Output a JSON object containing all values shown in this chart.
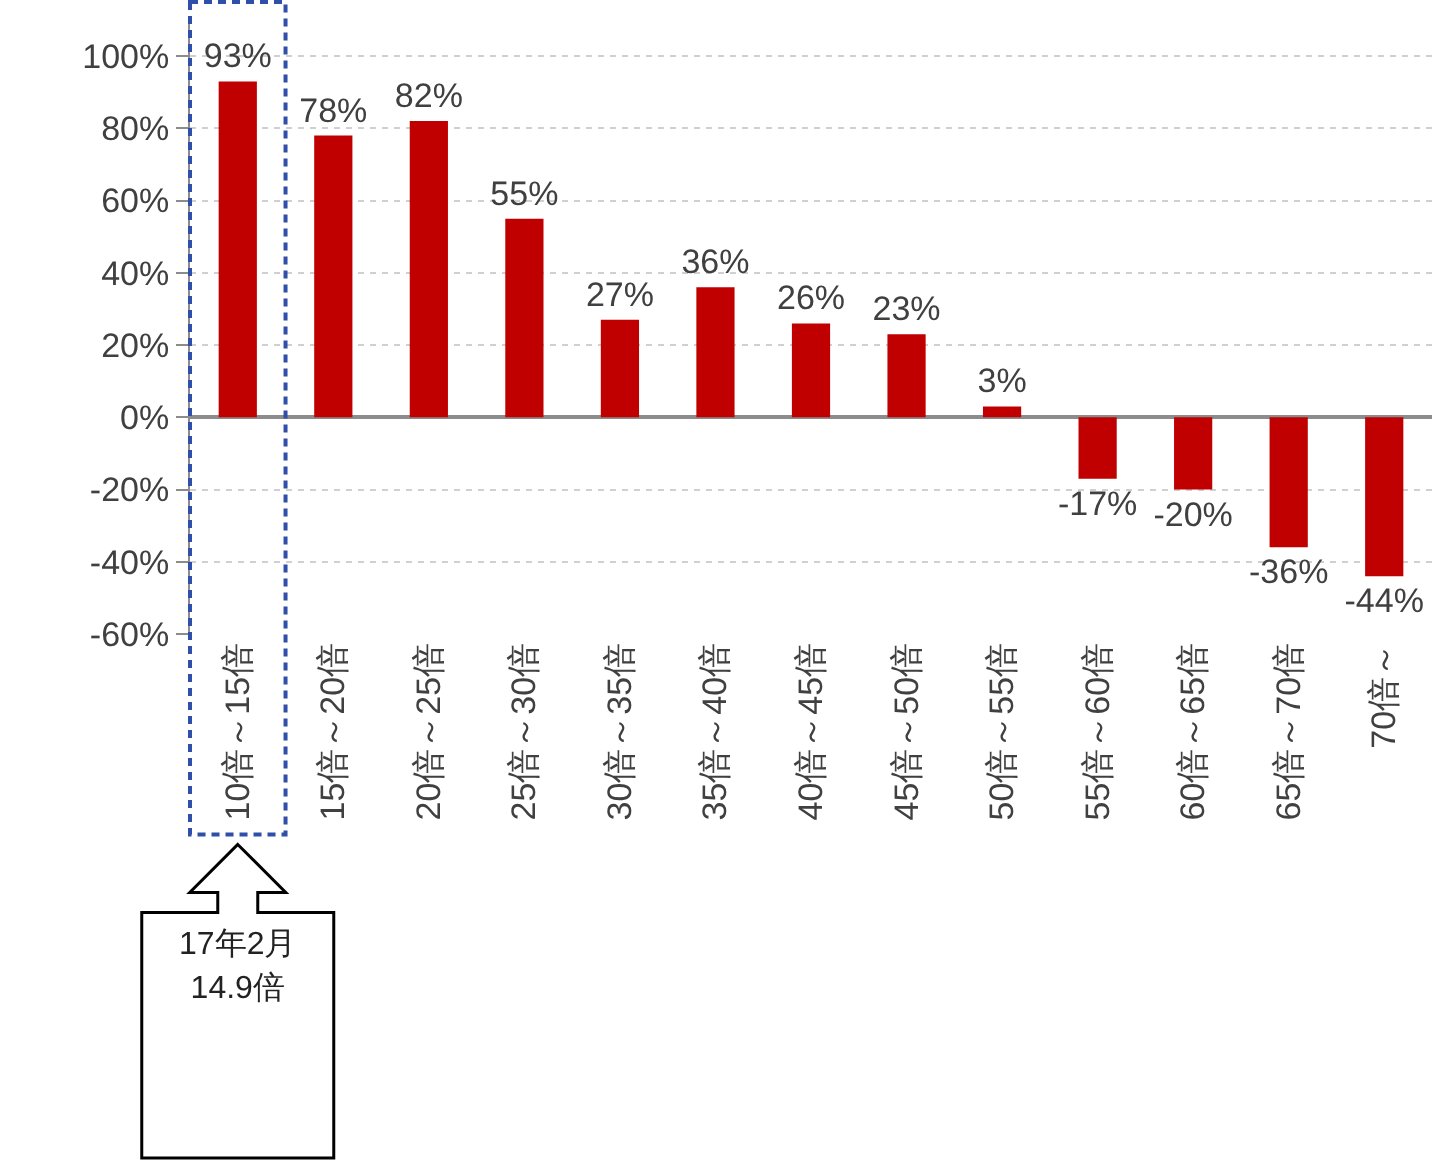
{
  "chart_data": {
    "type": "bar",
    "categories": [
      "10倍～15倍",
      "15倍～20倍",
      "20倍～25倍",
      "25倍～30倍",
      "30倍～35倍",
      "35倍～40倍",
      "40倍～45倍",
      "45倍～50倍",
      "50倍～55倍",
      "55倍～60倍",
      "60倍～65倍",
      "65倍～70倍",
      "70倍～"
    ],
    "values": [
      93,
      78,
      82,
      55,
      27,
      36,
      26,
      23,
      3,
      -17,
      -20,
      -36,
      -44
    ],
    "value_labels": [
      "93%",
      "78%",
      "82%",
      "55%",
      "27%",
      "36%",
      "26%",
      "23%",
      "3%",
      "-17%",
      "-20%",
      "-36%",
      "-44%"
    ],
    "color": "#c00000",
    "ylim": [
      -60,
      110
    ],
    "yticks": [
      {
        "value": -60,
        "label": "-60%"
      },
      {
        "value": -40,
        "label": "-40%"
      },
      {
        "value": -20,
        "label": "-20%"
      },
      {
        "value": 0,
        "label": "0%"
      },
      {
        "value": 20,
        "label": "20%"
      },
      {
        "value": 40,
        "label": "40%"
      },
      {
        "value": 60,
        "label": "60%"
      },
      {
        "value": 80,
        "label": "80%"
      },
      {
        "value": 100,
        "label": "100%"
      }
    ],
    "grid": "y",
    "annotations": [
      "17年2月\n14.9倍"
    ]
  }
}
